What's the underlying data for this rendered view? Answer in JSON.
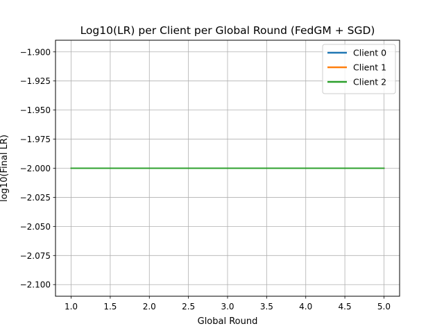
{
  "chart_data": {
    "type": "line",
    "title": "Log10(LR) per Client per Global Round (FedGM + SGD)",
    "xlabel": "Global Round",
    "ylabel": "log10(Final LR)",
    "xlim": [
      0.8,
      5.2
    ],
    "ylim": [
      -2.11,
      -1.89
    ],
    "xticks": [
      1.0,
      1.5,
      2.0,
      2.5,
      3.0,
      3.5,
      4.0,
      4.5,
      5.0
    ],
    "xtick_labels": [
      "1.0",
      "1.5",
      "2.0",
      "2.5",
      "3.0",
      "3.5",
      "4.0",
      "4.5",
      "5.0"
    ],
    "yticks": [
      -1.9,
      -1.925,
      -1.95,
      -1.975,
      -2.0,
      -2.025,
      -2.05,
      -2.075,
      -2.1
    ],
    "ytick_labels": [
      "−1.900",
      "−1.925",
      "−1.950",
      "−1.975",
      "−2.000",
      "−2.025",
      "−2.050",
      "−2.075",
      "−2.100"
    ],
    "grid": true,
    "legend_position": "top-right",
    "x": [
      1,
      2,
      3,
      4,
      5
    ],
    "series": [
      {
        "name": "Client 0",
        "color": "#1f77b4",
        "values": [
          -2.0,
          -2.0,
          -2.0,
          -2.0,
          -2.0
        ]
      },
      {
        "name": "Client 1",
        "color": "#ff7f0e",
        "values": [
          -2.0,
          -2.0,
          -2.0,
          -2.0,
          -2.0
        ]
      },
      {
        "name": "Client 2",
        "color": "#2ca02c",
        "values": [
          -2.0,
          -2.0,
          -2.0,
          -2.0,
          -2.0
        ]
      }
    ]
  }
}
